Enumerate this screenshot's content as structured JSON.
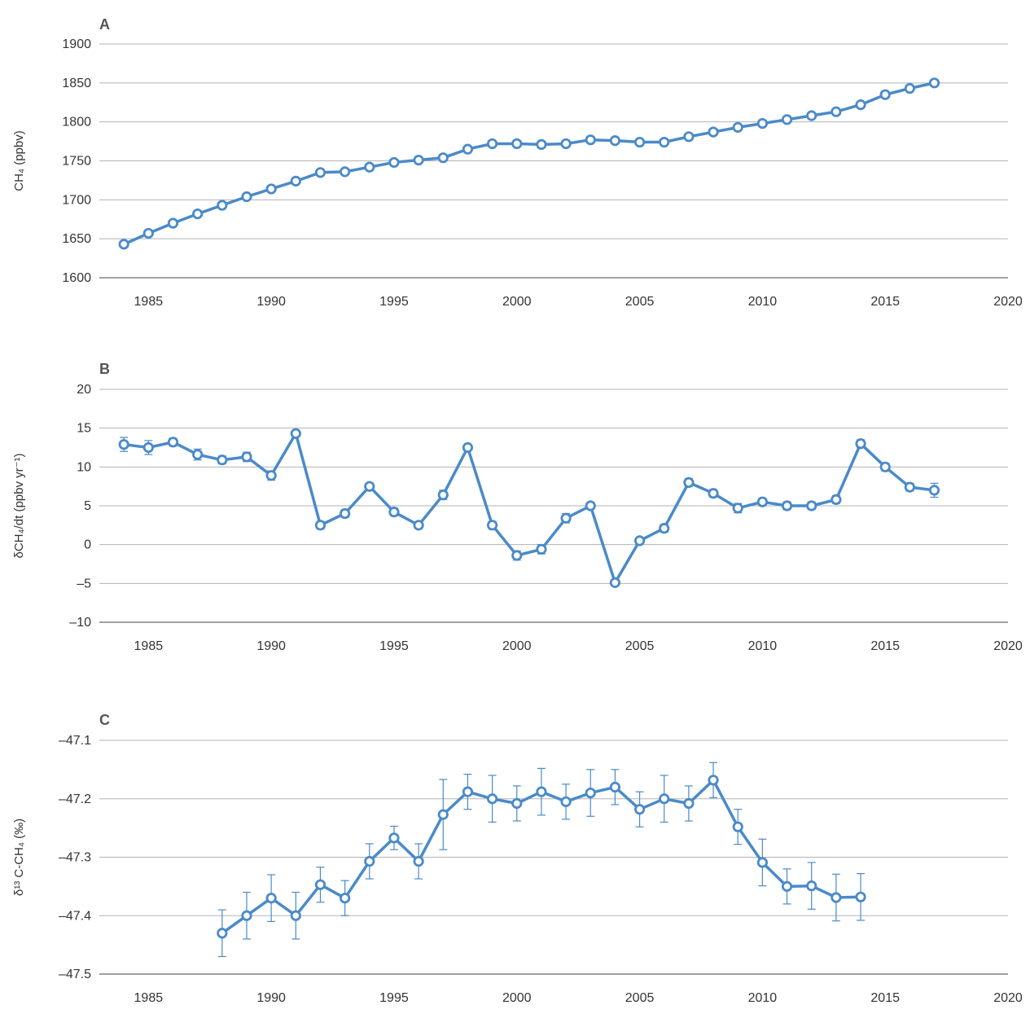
{
  "chart_data": [
    {
      "panel": "A",
      "type": "line",
      "ylabel": "CH₄ (ppbv)",
      "ylim": [
        1600,
        1900
      ],
      "yticks": [
        1600,
        1650,
        1700,
        1750,
        1800,
        1850,
        1900
      ],
      "xlim": [
        1983,
        2020
      ],
      "xticks": [
        1985,
        1990,
        1995,
        2000,
        2005,
        2010,
        2015,
        2020
      ],
      "grid": true,
      "color": "#4a8ac9",
      "series": [
        {
          "x": [
            1984,
            1985,
            1986,
            1987,
            1988,
            1989,
            1990,
            1991,
            1992,
            1993,
            1994,
            1995,
            1996,
            1997,
            1998,
            1999,
            2000,
            2001,
            2002,
            2003,
            2004,
            2005,
            2006,
            2007,
            2008,
            2009,
            2010,
            2011,
            2012,
            2013,
            2014,
            2015,
            2016,
            2017
          ],
          "y": [
            1643,
            1657,
            1670,
            1682,
            1693,
            1704,
            1714,
            1724,
            1735,
            1736,
            1742,
            1748,
            1751,
            1754,
            1765,
            1772,
            1772,
            1771,
            1772,
            1777,
            1776,
            1774,
            1774,
            1781,
            1787,
            1793,
            1798,
            1803,
            1808,
            1813,
            1822,
            1835,
            1843,
            1850
          ]
        }
      ]
    },
    {
      "panel": "B",
      "type": "line",
      "ylabel": "δCH₄/dt (ppbv yr⁻¹)",
      "ylim": [
        -10,
        20
      ],
      "yticks": [
        -10,
        -5,
        0,
        5,
        10,
        15,
        20
      ],
      "xlim": [
        1983,
        2020
      ],
      "xticks": [
        1985,
        1990,
        1995,
        2000,
        2005,
        2010,
        2015,
        2020
      ],
      "grid": true,
      "color": "#4a8ac9",
      "series": [
        {
          "x": [
            1984,
            1985,
            1986,
            1987,
            1988,
            1989,
            1990,
            1991,
            1992,
            1993,
            1994,
            1995,
            1996,
            1997,
            1998,
            1999,
            2000,
            2001,
            2002,
            2003,
            2004,
            2005,
            2006,
            2007,
            2008,
            2009,
            2010,
            2011,
            2012,
            2013,
            2014,
            2015,
            2016,
            2017
          ],
          "y": [
            12.9,
            12.5,
            13.2,
            11.6,
            10.9,
            11.3,
            8.9,
            14.3,
            2.5,
            4.0,
            7.5,
            4.2,
            2.5,
            6.4,
            12.5,
            2.5,
            -1.4,
            -0.6,
            3.4,
            5.0,
            -4.9,
            0.5,
            2.1,
            8.0,
            6.6,
            4.7,
            5.5,
            5.0,
            5.0,
            5.8,
            13.0,
            10.0,
            7.4,
            7.0
          ],
          "err": [
            0.9,
            0.9,
            0.5,
            0.7,
            0.5,
            0.6,
            0.6,
            0.4,
            0.5,
            0.5,
            0.4,
            0.5,
            0.4,
            0.6,
            0.4,
            0.5,
            0.6,
            0.6,
            0.6,
            0.4,
            0.4,
            0.4,
            0.5,
            0.5,
            0.5,
            0.6,
            0.5,
            0.5,
            0.5,
            0.5,
            0.5,
            0.5,
            0.5,
            0.9
          ]
        }
      ]
    },
    {
      "panel": "C",
      "type": "line",
      "ylabel": "δ¹³ C-CH₄ (‰)",
      "ylim": [
        -47.5,
        -47.1
      ],
      "yticks": [
        -47.5,
        -47.4,
        -47.3,
        -47.2,
        -47.1
      ],
      "xlim": [
        1983,
        2020
      ],
      "xticks": [
        1985,
        1990,
        1995,
        2000,
        2005,
        2010,
        2015,
        2020
      ],
      "grid": true,
      "color": "#4a8ac9",
      "series": [
        {
          "x": [
            1988,
            1989,
            1990,
            1991,
            1992,
            1993,
            1994,
            1995,
            1996,
            1997,
            1998,
            1999,
            2000,
            2001,
            2002,
            2003,
            2004,
            2005,
            2006,
            2007,
            2008,
            2009,
            2010,
            2011,
            2012,
            2013,
            2014
          ],
          "y": [
            -47.43,
            -47.4,
            -47.37,
            -47.4,
            -47.347,
            -47.37,
            -47.307,
            -47.267,
            -47.307,
            -47.227,
            -47.188,
            -47.2,
            -47.208,
            -47.188,
            -47.205,
            -47.19,
            -47.18,
            -47.218,
            -47.2,
            -47.208,
            -47.168,
            -47.248,
            -47.309,
            -47.35,
            -47.349,
            -47.369,
            -47.368
          ],
          "err": [
            0.04,
            0.04,
            0.04,
            0.04,
            0.03,
            0.03,
            0.03,
            0.02,
            0.03,
            0.06,
            0.03,
            0.04,
            0.03,
            0.04,
            0.03,
            0.04,
            0.03,
            0.03,
            0.04,
            0.03,
            0.03,
            0.03,
            0.04,
            0.03,
            0.04,
            0.04,
            0.04
          ]
        }
      ]
    }
  ]
}
